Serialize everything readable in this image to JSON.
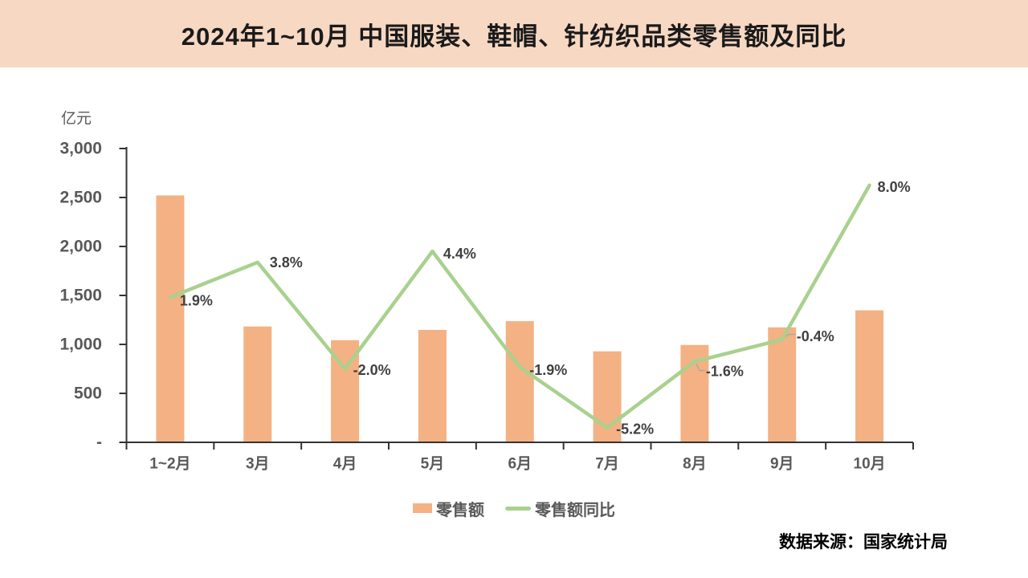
{
  "page": {
    "title": "2024年1~10月 中国服装、鞋帽、针纺织品类零售额及同比",
    "source_note": "数据来源：国家统计局"
  },
  "colors": {
    "banner_bg": "#f7d8c3",
    "bar": "#f4b183",
    "line": "#a9d18e",
    "axis": "#333333",
    "tick_text": "#595959",
    "data_label": "#404040",
    "leader": "#a6a6a6"
  },
  "chart_data": {
    "type": "bar",
    "combo": "bar+line",
    "title": "2024年1~10月 中国服装、鞋帽、针纺织品类零售额及同比",
    "unit_label": "亿元",
    "categories": [
      "1~2月",
      "3月",
      "4月",
      "5月",
      "6月",
      "7月",
      "8月",
      "9月",
      "10月"
    ],
    "series": [
      {
        "name": "零售额",
        "type": "bar",
        "unit": "亿元",
        "values": [
          2521,
          1183,
          1043,
          1148,
          1237,
          929,
          994,
          1174,
          1348
        ]
      },
      {
        "name": "零售额同比",
        "type": "line",
        "unit": "%",
        "values": [
          1.9,
          3.8,
          -2.0,
          4.4,
          -1.9,
          -5.2,
          -1.6,
          -0.4,
          8.0
        ],
        "point_labels": [
          "1.9%",
          "3.8%",
          "-2.0%",
          "4.4%",
          "-1.9%",
          "-5.2%",
          "-1.6%",
          "-0.4%",
          "8.0%"
        ]
      }
    ],
    "y_axis": {
      "label": "亿元",
      "min": 0,
      "max": 3000,
      "step": 500,
      "tick_labels": [
        "-",
        "500",
        "1,000",
        "1,500",
        "2,000",
        "2,500",
        "3,000"
      ]
    },
    "y2_axis": {
      "min": -6,
      "max": 10,
      "visible": false
    },
    "grid": false,
    "legend_position": "bottom",
    "legend": [
      "零售额",
      "零售额同比"
    ]
  }
}
